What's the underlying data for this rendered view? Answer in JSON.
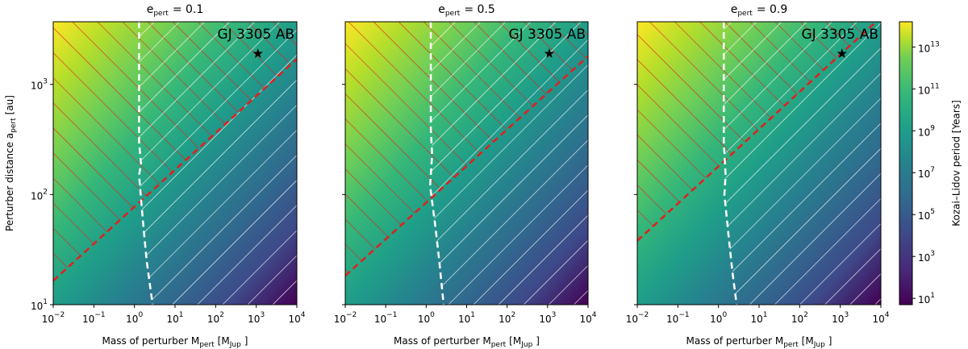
{
  "chart_data": [
    {
      "type": "heatmap",
      "title": {
        "symbol": "e",
        "subscript": "pert",
        "text": "= 0.1"
      },
      "xlabel": [
        {
          "text": "Mass of perturber M"
        },
        {
          "sub": "pert"
        },
        {
          "text": "[M"
        },
        {
          "sub": "Jup"
        },
        {
          "text": "]"
        }
      ],
      "ylabel": [
        {
          "text": "Perturber distance a"
        },
        {
          "sub": "pert"
        },
        {
          "text": "[au]"
        }
      ],
      "xscale": "log",
      "yscale": "log",
      "xlim": [
        0.01,
        10000
      ],
      "ylim": [
        10,
        3700
      ],
      "xticks": [
        {
          "value": 0.01,
          "label": "10",
          "exponent": "−2"
        },
        {
          "value": 0.1,
          "label": "10",
          "exponent": "−1"
        },
        {
          "value": 1,
          "label": "10",
          "exponent": "0"
        },
        {
          "value": 10,
          "label": "10",
          "exponent": "1"
        },
        {
          "value": 100,
          "label": "10",
          "exponent": "2"
        },
        {
          "value": 1000,
          "label": "10",
          "exponent": "3"
        },
        {
          "value": 10000,
          "label": "10",
          "exponent": "4"
        }
      ],
      "yticks": [
        {
          "value": 10,
          "label": "10",
          "exponent": "1"
        },
        {
          "value": 100,
          "label": "10",
          "exponent": "2"
        },
        {
          "value": 1000,
          "label": "10",
          "exponent": "3"
        }
      ],
      "series": [
        {
          "color": "#e0201c",
          "hatch": "above",
          "x": [
            0.01,
            10000
          ],
          "values": [
            16.5,
            1700
          ]
        },
        {
          "color": "#ffffff",
          "hatch": "right",
          "x": [
            1.3,
            1.3,
            1.45,
            1.3,
            1.6,
            2.0,
            2.8
          ],
          "values": [
            3700,
            300,
            190,
            150,
            60,
            25,
            10
          ]
        }
      ],
      "star": {
        "x": 1100,
        "y": 1900,
        "label": "GJ 3305 AB"
      }
    },
    {
      "type": "heatmap",
      "title": {
        "symbol": "e",
        "subscript": "pert",
        "text": "= 0.5"
      },
      "xlabel": [
        {
          "text": "Mass of perturber M"
        },
        {
          "sub": "pert"
        },
        {
          "text": "[M"
        },
        {
          "sub": "Jup"
        },
        {
          "text": "]"
        }
      ],
      "xscale": "log",
      "yscale": "log",
      "xlim": [
        0.01,
        10000
      ],
      "ylim": [
        10,
        3700
      ],
      "xticks": [
        {
          "value": 0.01,
          "label": "10",
          "exponent": "−2"
        },
        {
          "value": 0.1,
          "label": "10",
          "exponent": "−1"
        },
        {
          "value": 1,
          "label": "10",
          "exponent": "0"
        },
        {
          "value": 10,
          "label": "10",
          "exponent": "1"
        },
        {
          "value": 100,
          "label": "10",
          "exponent": "2"
        },
        {
          "value": 1000,
          "label": "10",
          "exponent": "3"
        },
        {
          "value": 10000,
          "label": "10",
          "exponent": "4"
        }
      ],
      "yticks": [
        10,
        100,
        1000
      ],
      "series": [
        {
          "color": "#e0201c",
          "hatch": "above",
          "x": [
            0.01,
            10000
          ],
          "values": [
            18.3,
            1800
          ]
        },
        {
          "color": "#ffffff",
          "hatch": "right",
          "x": [
            1.3,
            1.3,
            1.4,
            1.25,
            1.7,
            2.1,
            2.7
          ],
          "values": [
            3700,
            400,
            230,
            120,
            50,
            25,
            10
          ]
        }
      ],
      "star": {
        "x": 1100,
        "y": 1900,
        "label": "GJ 3305 AB"
      }
    },
    {
      "type": "heatmap",
      "title": {
        "symbol": "e",
        "subscript": "pert",
        "text": "= 0.9"
      },
      "xlabel": [
        {
          "text": "Mass of perturber M"
        },
        {
          "sub": "pert"
        },
        {
          "text": "[M"
        },
        {
          "sub": "Jup"
        },
        {
          "text": "]"
        }
      ],
      "xscale": "log",
      "yscale": "log",
      "xlim": [
        0.01,
        10000
      ],
      "ylim": [
        10,
        3700
      ],
      "xticks": [
        {
          "value": 0.01,
          "label": "10",
          "exponent": "−2"
        },
        {
          "value": 0.1,
          "label": "10",
          "exponent": "−1"
        },
        {
          "value": 1,
          "label": "10",
          "exponent": "0"
        },
        {
          "value": 10,
          "label": "10",
          "exponent": "1"
        },
        {
          "value": 100,
          "label": "10",
          "exponent": "2"
        },
        {
          "value": 1000,
          "label": "10",
          "exponent": "3"
        },
        {
          "value": 10000,
          "label": "10",
          "exponent": "4"
        }
      ],
      "yticks": [
        10,
        100,
        1000
      ],
      "series": [
        {
          "color": "#e0201c",
          "hatch": "above",
          "x": [
            0.01,
            7600
          ],
          "values": [
            38,
            3700
          ]
        },
        {
          "color": "#ffffff",
          "hatch": "right",
          "x": [
            1.35,
            1.35,
            1.5,
            1.4,
            1.8,
            2.2,
            2.8
          ],
          "values": [
            3700,
            300,
            150,
            100,
            40,
            20,
            10
          ]
        }
      ],
      "star": {
        "x": 1100,
        "y": 1900,
        "label": "GJ 3305 AB"
      }
    }
  ],
  "colorbar": {
    "label": "Kozai–Lidov period [Years]",
    "scale": "log",
    "lim": [
      5,
      160000000000000
    ],
    "ticks": [
      {
        "value": 10,
        "label": "10",
        "exponent": "1"
      },
      {
        "value": 1000,
        "label": "10",
        "exponent": "3"
      },
      {
        "value": 100000,
        "label": "10",
        "exponent": "5"
      },
      {
        "value": 10000000,
        "label": "10",
        "exponent": "7"
      },
      {
        "value": 1000000000,
        "label": "10",
        "exponent": "9"
      },
      {
        "value": 100000000000,
        "label": "10",
        "exponent": "11"
      },
      {
        "value": 10000000000000,
        "label": "10",
        "exponent": "13"
      }
    ]
  }
}
